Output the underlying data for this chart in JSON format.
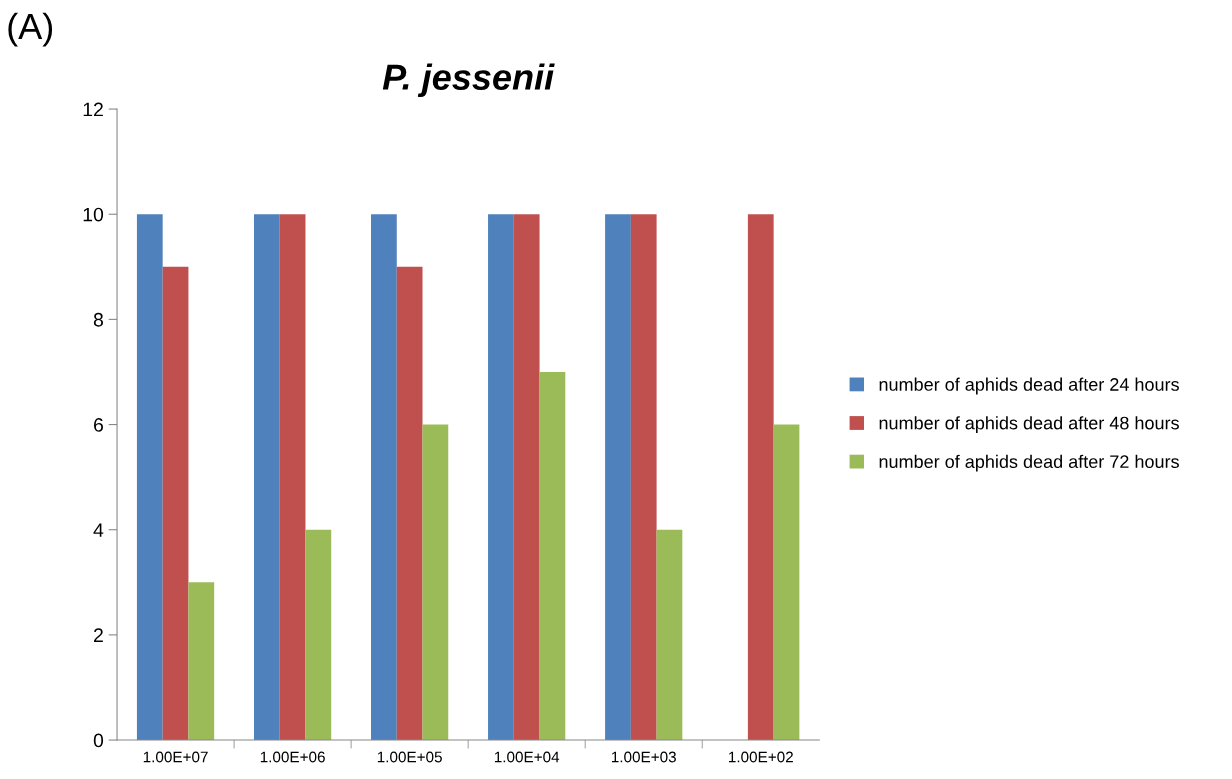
{
  "chart_data": {
    "type": "bar",
    "title": "P. jessenii",
    "annotations": [
      "(A)"
    ],
    "categories": [
      "1.00E+07",
      "1.00E+06",
      "1.00E+05",
      "1.00E+04",
      "1.00E+03",
      "1.00E+02"
    ],
    "series": [
      {
        "name": "number of aphids dead after 24 hours",
        "color": "#4f81bd",
        "values": [
          10,
          10,
          10,
          10,
          10,
          0
        ]
      },
      {
        "name": "number of aphids dead after 48 hours",
        "color": "#c0504d",
        "values": [
          9,
          10,
          9,
          10,
          10,
          10
        ]
      },
      {
        "name": "number of aphids dead after 72 hours",
        "color": "#9bbb59",
        "values": [
          3,
          4,
          6,
          7,
          4,
          6
        ]
      }
    ],
    "ylim": [
      0,
      12
    ],
    "yticks": [
      0,
      2,
      4,
      6,
      8,
      10,
      12
    ],
    "grid": false,
    "legend": "right"
  }
}
